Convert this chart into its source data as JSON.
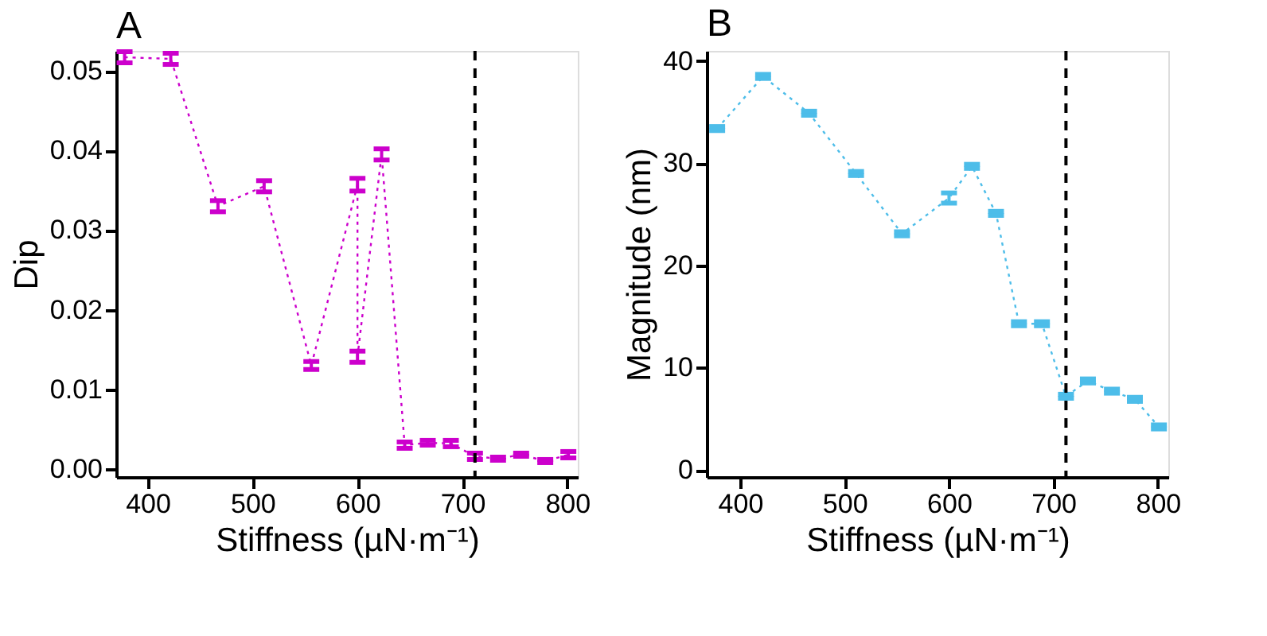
{
  "chart_data": [
    {
      "type": "line",
      "title": "A",
      "xlabel": "Stiffness (µN·m⁻¹)",
      "ylabel": "Dip",
      "x": [
        378,
        422,
        467,
        511,
        556,
        600,
        600,
        623,
        645,
        667,
        689,
        712,
        734,
        756,
        779,
        801
      ],
      "series": [
        {
          "color": "#cc00cc",
          "values": [
            0.0517,
            0.0515,
            0.033,
            0.0355,
            0.013,
            0.0357,
            0.0141,
            0.0395,
            0.003,
            0.0033,
            0.0032,
            0.0016,
            0.0013,
            0.0018,
            0.001,
            0.0018
          ],
          "errors": [
            0.0007,
            0.0007,
            0.0007,
            0.0007,
            0.0005,
            0.0008,
            0.0007,
            0.0007,
            0.0004,
            0.0003,
            0.0004,
            0.0004,
            0.0002,
            0.0002,
            0.0002,
            0.0004
          ]
        }
      ],
      "line_style": "dotted",
      "xlim": [
        370,
        810
      ],
      "xticks": [
        400,
        500,
        600,
        700,
        800
      ],
      "ylim": [
        -0.001,
        0.0525
      ],
      "yticks": [
        {
          "value": 0,
          "label": "0.00"
        },
        0.01,
        0.02,
        0.03,
        0.04,
        0.05
      ],
      "ref_lines": [
        {
          "axis": "x",
          "value": 712,
          "color": "#000000",
          "line_style": "dashed"
        }
      ],
      "grid": false
    },
    {
      "type": "line",
      "title": "B",
      "xlabel": "Stiffness (µN·m⁻¹)",
      "ylabel": "Magnitude (nm)",
      "x": [
        378,
        422,
        466,
        511,
        555,
        600,
        622,
        645,
        667,
        689,
        712,
        733,
        756,
        778,
        801
      ],
      "series": [
        {
          "color": "#4dbde9",
          "values": [
            33.4,
            38.5,
            34.9,
            29.0,
            23.1,
            26.6,
            29.7,
            25.1,
            14.3,
            14.3,
            7.2,
            8.7,
            7.7,
            6.9,
            4.2
          ],
          "errors": [
            0.2,
            0.2,
            0.2,
            0.2,
            0.2,
            0.5,
            0.2,
            0.2,
            0.2,
            0.2,
            0.2,
            0.2,
            0.2,
            0.2,
            0.2
          ]
        }
      ],
      "line_style": "dotted",
      "xlim": [
        368,
        810
      ],
      "xticks": [
        400,
        500,
        600,
        700,
        800
      ],
      "ylim": [
        -0.7,
        41
      ],
      "yticks": [
        0,
        10,
        20,
        30,
        40
      ],
      "ref_lines": [
        {
          "axis": "x",
          "value": 712,
          "color": "#000000",
          "line_style": "dashed"
        }
      ],
      "grid": false
    }
  ]
}
